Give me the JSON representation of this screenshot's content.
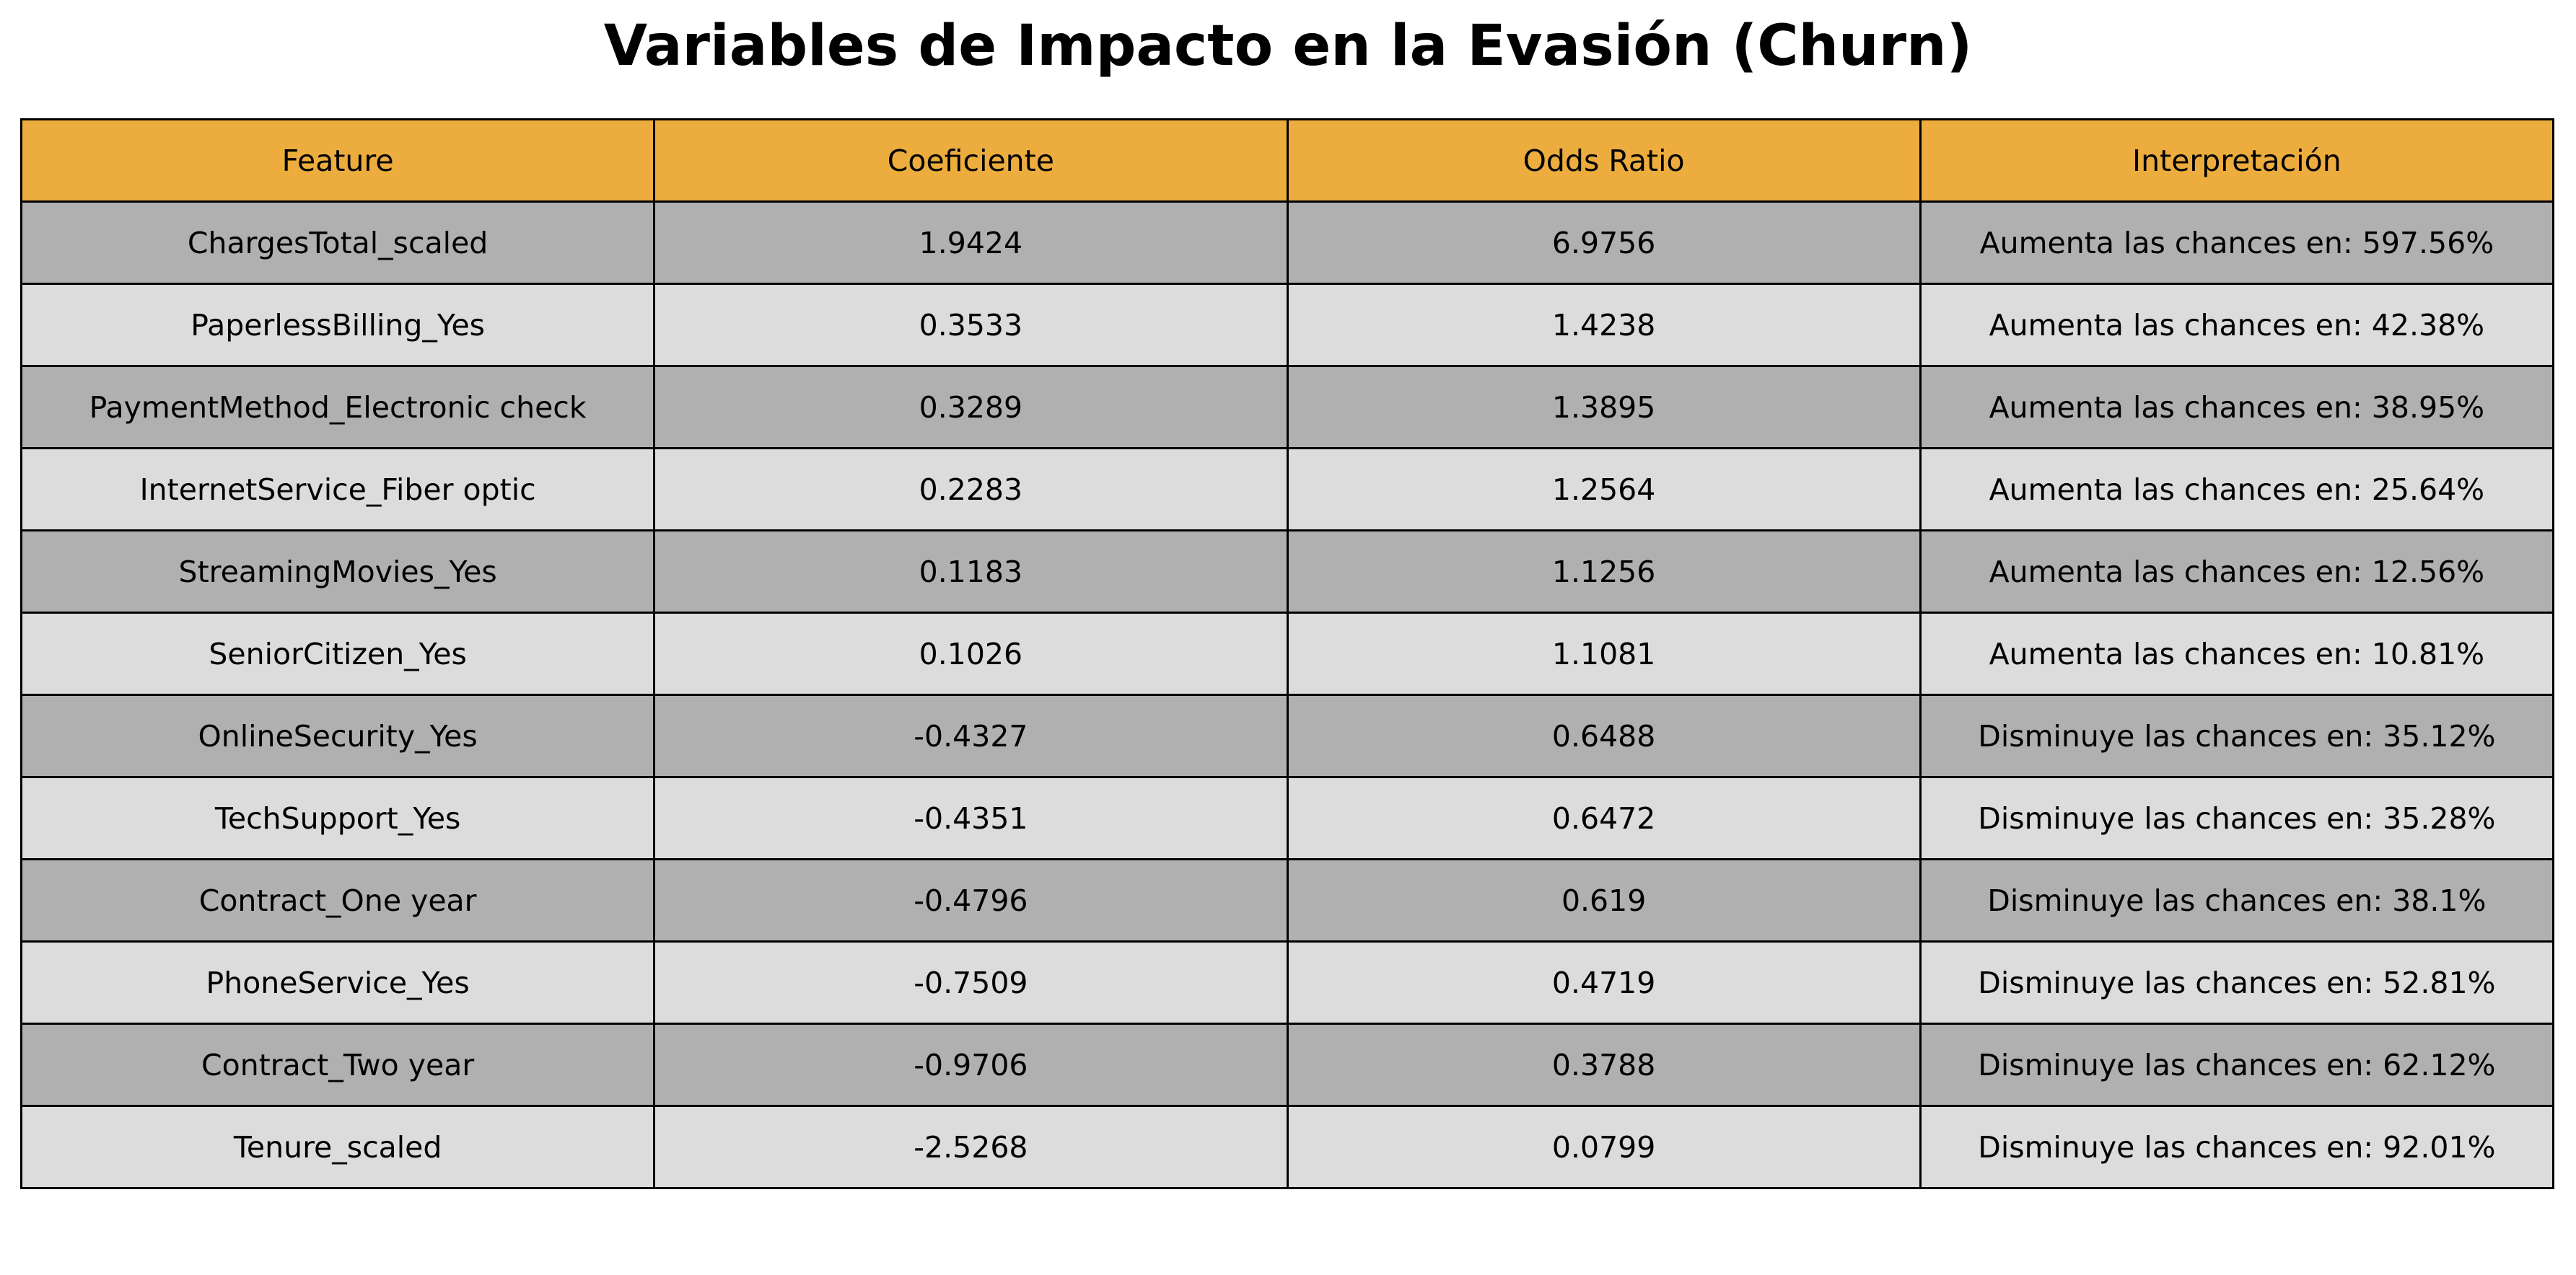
{
  "chart_data": {
    "type": "table",
    "title": "Variables de Impacto en la Evasión (Churn)",
    "columns": [
      "Feature",
      "Coeficiente",
      "Odds Ratio",
      "Interpretación"
    ],
    "rows": [
      [
        "ChargesTotal_scaled",
        "1.9424",
        "6.9756",
        "Aumenta las chances en: 597.56%"
      ],
      [
        "PaperlessBilling_Yes",
        "0.3533",
        "1.4238",
        "Aumenta las chances en: 42.38%"
      ],
      [
        "PaymentMethod_Electronic check",
        "0.3289",
        "1.3895",
        "Aumenta las chances en: 38.95%"
      ],
      [
        "InternetService_Fiber optic",
        "0.2283",
        "1.2564",
        "Aumenta las chances en: 25.64%"
      ],
      [
        "StreamingMovies_Yes",
        "0.1183",
        "1.1256",
        "Aumenta las chances en: 12.56%"
      ],
      [
        "SeniorCitizen_Yes",
        "0.1026",
        "1.1081",
        "Aumenta las chances en: 10.81%"
      ],
      [
        "OnlineSecurity_Yes",
        "-0.4327",
        "0.6488",
        "Disminuye las chances en: 35.12%"
      ],
      [
        "TechSupport_Yes",
        "-0.4351",
        "0.6472",
        "Disminuye las chances en: 35.28%"
      ],
      [
        "Contract_One year",
        "-0.4796",
        "0.619",
        "Disminuye las chances en: 38.1%"
      ],
      [
        "PhoneService_Yes",
        "-0.7509",
        "0.4719",
        "Disminuye las chances en: 52.81%"
      ],
      [
        "Contract_Two year",
        "-0.9706",
        "0.3788",
        "Disminuye las chances en: 62.12%"
      ],
      [
        "Tenure_scaled",
        "-2.5268",
        "0.0799",
        "Disminuye las chances en: 92.01%"
      ]
    ],
    "colors": {
      "header": "#ecad3e",
      "row_dark": "#b0b0b0",
      "row_light": "#dcdcdc",
      "border": "#000000"
    }
  }
}
